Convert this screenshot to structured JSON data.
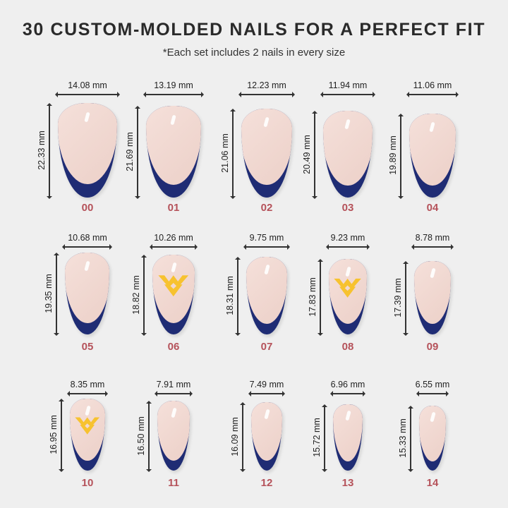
{
  "title": "30 CUSTOM-MOLDED NAILS FOR A PERFECT FIT",
  "subtitle": "*Each set includes 2 nails in every size",
  "colors": {
    "tip": "#1f2c74",
    "nail": "#f2d9d2",
    "logo": "#f7c22f",
    "number": "#b5525a"
  },
  "nails": [
    {
      "number": "00",
      "width": "14.08 mm",
      "height": "22.33 mm",
      "logo": false
    },
    {
      "number": "01",
      "width": "13.19 mm",
      "height": "21.69 mm",
      "logo": false
    },
    {
      "number": "02",
      "width": "12.23 mm",
      "height": "21.06 mm",
      "logo": false
    },
    {
      "number": "03",
      "width": "11.94 mm",
      "height": "20.49 mm",
      "logo": false
    },
    {
      "number": "04",
      "width": "11.06 mm",
      "height": "19.89 mm",
      "logo": false
    },
    {
      "number": "05",
      "width": "10.68 mm",
      "height": "19.35 mm",
      "logo": false
    },
    {
      "number": "06",
      "width": "10.26 mm",
      "height": "18.82 mm",
      "logo": true
    },
    {
      "number": "07",
      "width": "9.75 mm",
      "height": "18.31 mm",
      "logo": false
    },
    {
      "number": "08",
      "width": "9.23 mm",
      "height": "17.83 mm",
      "logo": true
    },
    {
      "number": "09",
      "width": "8.78 mm",
      "height": "17.39 mm",
      "logo": false
    },
    {
      "number": "10",
      "width": "8.35 mm",
      "height": "16.95 mm",
      "logo": true
    },
    {
      "number": "11",
      "width": "7.91 mm",
      "height": "16.50 mm",
      "logo": false
    },
    {
      "number": "12",
      "width": "7.49 mm",
      "height": "16.09 mm",
      "logo": false
    },
    {
      "number": "13",
      "width": "6.96 mm",
      "height": "15.72 mm",
      "logo": false
    },
    {
      "number": "14",
      "width": "6.55 mm",
      "height": "15.33 mm",
      "logo": false
    }
  ]
}
